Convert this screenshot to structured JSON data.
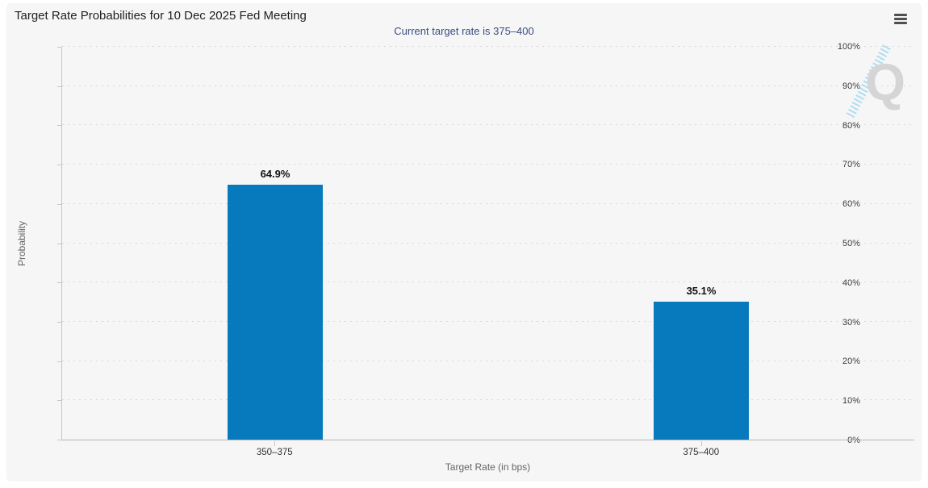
{
  "header": {
    "title": "Target Rate Probabilities for 10 Dec 2025 Fed Meeting",
    "subtitle": "Current target rate is 375–400",
    "menu_tooltip": "Chart context menu"
  },
  "chart_data": {
    "type": "bar",
    "categories": [
      "350–375",
      "375–400"
    ],
    "values": [
      64.9,
      35.1
    ],
    "data_labels": [
      "64.9%",
      "35.1%"
    ],
    "title": "Target Rate Probabilities for 10 Dec 2025 Fed Meeting",
    "subtitle": "Current target rate is 375–400",
    "xlabel": "Target Rate (in bps)",
    "ylabel": "Probability",
    "ylim": [
      0,
      100
    ],
    "ytick_step": 10,
    "ytick_suffix": "%",
    "grid": "dotted horizontal gridlines every 10%",
    "legend": "none"
  },
  "watermark": {
    "letter": "Q"
  },
  "colors": {
    "bar": "#077ABE",
    "subtitle_text": "#394E7F",
    "container_bg": "#F6F6F6",
    "grid_dot": "#D7D7D7",
    "axis_line": "#C6C6C6",
    "title_text": "#1F1F1F",
    "tick_text": "#3A3A3A",
    "axis_title_text": "#666666",
    "data_label_text": "#111111",
    "watermark_q": "#D5D5D5",
    "watermark_slash": "#AADCF4",
    "menu_icon": "#4F4F4F"
  }
}
